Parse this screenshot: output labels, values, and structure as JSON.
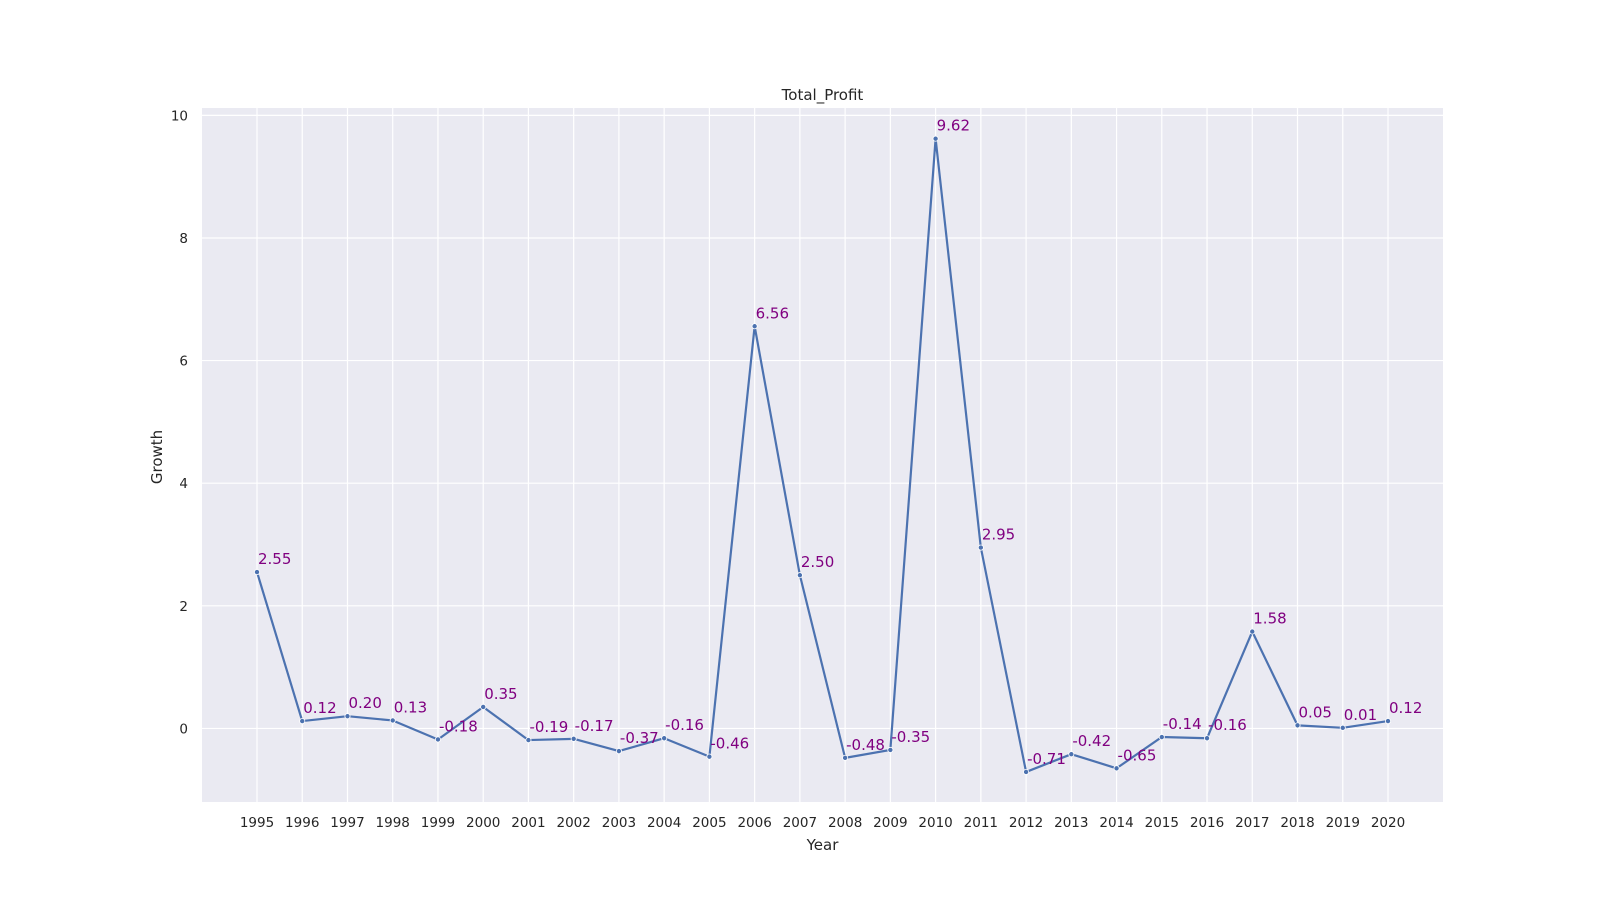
{
  "chart_data": {
    "type": "line",
    "title": "Total_Profit",
    "xlabel": "Year",
    "ylabel": "Growth",
    "ylim": [
      -1.2,
      10.12
    ],
    "yticks": [
      0,
      2,
      4,
      6,
      8,
      10
    ],
    "grid": true,
    "categories": [
      "1995",
      "1996",
      "1997",
      "1998",
      "1999",
      "2000",
      "2001",
      "2002",
      "2003",
      "2004",
      "2005",
      "2006",
      "2007",
      "2008",
      "2009",
      "2010",
      "2011",
      "2012",
      "2013",
      "2014",
      "2015",
      "2016",
      "2017",
      "2018",
      "2019",
      "2020"
    ],
    "series": [
      {
        "values": [
          2.55,
          0.12,
          0.2,
          0.13,
          -0.18,
          0.35,
          -0.19,
          -0.17,
          -0.37,
          -0.16,
          -0.46,
          6.56,
          2.5,
          -0.48,
          -0.35,
          9.62,
          2.95,
          -0.71,
          -0.42,
          -0.65,
          -0.14,
          -0.16,
          1.58,
          0.05,
          0.01,
          0.12
        ],
        "labels": [
          "2.55",
          "0.12",
          "0.20",
          "0.13",
          "-0.18",
          "0.35",
          "-0.19",
          "-0.17",
          "-0.37",
          "-0.16",
          "-0.46",
          "6.56",
          "2.50",
          "-0.48",
          "-0.35",
          "9.62",
          "2.95",
          "-0.71",
          "-0.42",
          "-0.65",
          "-0.14",
          "-0.16",
          "1.58",
          "0.05",
          "0.01",
          "0.12"
        ]
      }
    ],
    "colors": {
      "line": "#4c72b0",
      "label": "#800080",
      "plot_bg": "#eaeaf2",
      "grid": "#ffffff"
    }
  }
}
